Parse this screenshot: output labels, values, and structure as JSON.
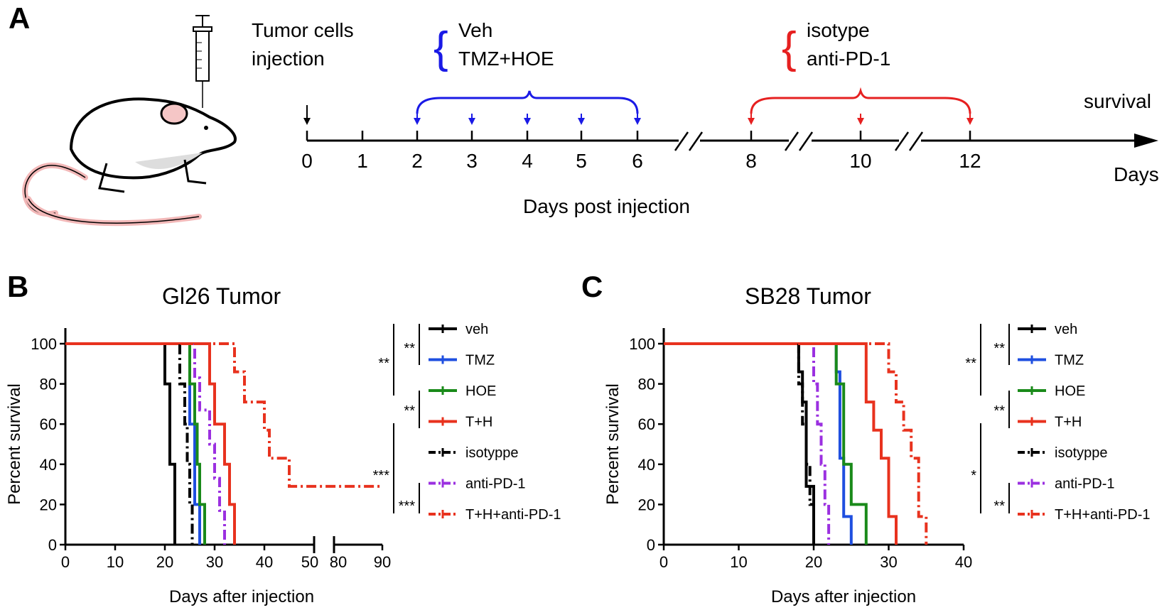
{
  "panel_a": {
    "label": "A",
    "injection_text_1": "Tumor cells",
    "injection_text_2": "injection",
    "treat1_label_1": "Veh",
    "treat1_label_2": "TMZ+HOE",
    "treat2_label_1": "isotype",
    "treat2_label_2": "anti-PD-1",
    "survival_label": "survival",
    "days_label": "Days",
    "axis_title": "Days post injection",
    "ticks": [
      "0",
      "1",
      "2",
      "3",
      "4",
      "5",
      "6",
      "8",
      "10",
      "12"
    ],
    "colors": {
      "blue": "#1a1ae6",
      "red": "#e62020"
    }
  },
  "panel_b": {
    "label": "B",
    "title": "Gl26 Tumor"
  },
  "panel_c": {
    "label": "C",
    "title": "SB28 Tumor"
  },
  "chart_data": [
    {
      "type": "line",
      "subtype": "kaplan-meier",
      "title": "Gl26 Tumor",
      "xlabel": "Days after injection",
      "ylabel": "Percent survival",
      "xlim": [
        0,
        90
      ],
      "x_break": [
        50,
        80
      ],
      "ylim": [
        0,
        100
      ],
      "x_ticks": [
        {
          "v": 0,
          "t": "0"
        },
        {
          "v": 10,
          "t": "10"
        },
        {
          "v": 20,
          "t": "20"
        },
        {
          "v": 30,
          "t": "30"
        },
        {
          "v": 40,
          "t": "40"
        },
        {
          "v": 50,
          "t": "50"
        },
        {
          "v": 80,
          "t": "80"
        },
        {
          "v": 90,
          "t": "90"
        }
      ],
      "y_ticks": [
        0,
        20,
        40,
        60,
        80,
        100
      ],
      "series": [
        {
          "name": "veh",
          "color": "#000000",
          "dash": "solid",
          "points": [
            [
              0,
              100
            ],
            [
              20,
              100
            ],
            [
              20,
              80
            ],
            [
              21,
              80
            ],
            [
              21,
              40
            ],
            [
              22,
              40
            ],
            [
              22,
              0
            ]
          ]
        },
        {
          "name": "TMZ",
          "color": "#1f4fe0",
          "dash": "solid",
          "points": [
            [
              0,
              100
            ],
            [
              25,
              100
            ],
            [
              25,
              60
            ],
            [
              26,
              60
            ],
            [
              26,
              20
            ],
            [
              27,
              20
            ],
            [
              27,
              0
            ]
          ]
        },
        {
          "name": "HOE",
          "color": "#1a8a1a",
          "dash": "solid",
          "points": [
            [
              0,
              100
            ],
            [
              25,
              100
            ],
            [
              25,
              80
            ],
            [
              26,
              80
            ],
            [
              26,
              60
            ],
            [
              26.5,
              60
            ],
            [
              26.5,
              40
            ],
            [
              27,
              40
            ],
            [
              27,
              20
            ],
            [
              28,
              20
            ],
            [
              28,
              0
            ]
          ]
        },
        {
          "name": "T+H",
          "color": "#e8321e",
          "dash": "solid",
          "points": [
            [
              0,
              100
            ],
            [
              29,
              100
            ],
            [
              29,
              80
            ],
            [
              30,
              80
            ],
            [
              30,
              60
            ],
            [
              32,
              60
            ],
            [
              32,
              40
            ],
            [
              33,
              40
            ],
            [
              33,
              20
            ],
            [
              34,
              20
            ],
            [
              34,
              0
            ]
          ]
        },
        {
          "name": "isotyppe",
          "color": "#000000",
          "dash": "dashdot",
          "points": [
            [
              0,
              100
            ],
            [
              23,
              100
            ],
            [
              23,
              80
            ],
            [
              24,
              80
            ],
            [
              24,
              60
            ],
            [
              24.5,
              60
            ],
            [
              24.5,
              40
            ],
            [
              25,
              40
            ],
            [
              25,
              20
            ],
            [
              25.5,
              20
            ],
            [
              25.5,
              0
            ]
          ]
        },
        {
          "name": "anti-PD-1",
          "color": "#9b30e0",
          "dash": "dashdot",
          "points": [
            [
              0,
              100
            ],
            [
              26,
              100
            ],
            [
              26,
              83
            ],
            [
              27,
              83
            ],
            [
              27,
              67
            ],
            [
              29,
              67
            ],
            [
              29,
              50
            ],
            [
              30,
              50
            ],
            [
              30,
              33
            ],
            [
              31,
              33
            ],
            [
              31,
              17
            ],
            [
              32,
              17
            ],
            [
              32,
              0
            ]
          ]
        },
        {
          "name": "T+H+anti-PD-1",
          "color": "#e8321e",
          "dash": "dashdot",
          "points": [
            [
              0,
              100
            ],
            [
              34,
              100
            ],
            [
              34,
              86
            ],
            [
              36,
              86
            ],
            [
              36,
              71
            ],
            [
              40,
              71
            ],
            [
              40,
              57
            ],
            [
              41,
              57
            ],
            [
              41,
              43
            ],
            [
              45,
              43
            ],
            [
              45,
              29
            ],
            [
              90,
              29
            ]
          ]
        }
      ],
      "significance": [
        "**",
        "**",
        "**",
        "***",
        "***"
      ]
    },
    {
      "type": "line",
      "subtype": "kaplan-meier",
      "title": "SB28 Tumor",
      "xlabel": "Days after injection",
      "ylabel": "Percent survival",
      "xlim": [
        0,
        40
      ],
      "ylim": [
        0,
        100
      ],
      "x_ticks": [
        {
          "v": 0,
          "t": "0"
        },
        {
          "v": 10,
          "t": "10"
        },
        {
          "v": 20,
          "t": "20"
        },
        {
          "v": 30,
          "t": "30"
        },
        {
          "v": 40,
          "t": "40"
        }
      ],
      "y_ticks": [
        0,
        20,
        40,
        60,
        80,
        100
      ],
      "series": [
        {
          "name": "veh",
          "color": "#000000",
          "dash": "solid",
          "points": [
            [
              0,
              100
            ],
            [
              18,
              100
            ],
            [
              18,
              86
            ],
            [
              18.5,
              86
            ],
            [
              18.5,
              71
            ],
            [
              19,
              71
            ],
            [
              19,
              29
            ],
            [
              20,
              29
            ],
            [
              20,
              0
            ]
          ]
        },
        {
          "name": "TMZ",
          "color": "#1f4fe0",
          "dash": "solid",
          "points": [
            [
              0,
              100
            ],
            [
              23,
              100
            ],
            [
              23,
              86
            ],
            [
              23.5,
              86
            ],
            [
              23.5,
              43
            ],
            [
              24,
              43
            ],
            [
              24,
              14
            ],
            [
              25,
              14
            ],
            [
              25,
              0
            ]
          ]
        },
        {
          "name": "HOE",
          "color": "#1a8a1a",
          "dash": "solid",
          "points": [
            [
              0,
              100
            ],
            [
              23,
              100
            ],
            [
              23,
              80
            ],
            [
              24,
              80
            ],
            [
              24,
              40
            ],
            [
              25,
              40
            ],
            [
              25,
              20
            ],
            [
              27,
              20
            ],
            [
              27,
              0
            ]
          ]
        },
        {
          "name": "T+H",
          "color": "#e8321e",
          "dash": "solid",
          "points": [
            [
              0,
              100
            ],
            [
              27,
              100
            ],
            [
              27,
              71
            ],
            [
              28,
              71
            ],
            [
              28,
              57
            ],
            [
              29,
              57
            ],
            [
              29,
              43
            ],
            [
              30,
              43
            ],
            [
              30,
              14
            ],
            [
              31,
              14
            ],
            [
              31,
              0
            ]
          ]
        },
        {
          "name": "isotyppe",
          "color": "#000000",
          "dash": "dashdot",
          "points": [
            [
              0,
              100
            ],
            [
              18,
              100
            ],
            [
              18,
              80
            ],
            [
              18.5,
              80
            ],
            [
              18.5,
              60
            ],
            [
              19,
              60
            ],
            [
              19,
              40
            ],
            [
              19.5,
              40
            ],
            [
              19.5,
              20
            ],
            [
              20,
              20
            ],
            [
              20,
              0
            ]
          ]
        },
        {
          "name": "anti-PD-1",
          "color": "#9b30e0",
          "dash": "dashdot",
          "points": [
            [
              0,
              100
            ],
            [
              20,
              100
            ],
            [
              20,
              80
            ],
            [
              20.5,
              80
            ],
            [
              20.5,
              60
            ],
            [
              21,
              60
            ],
            [
              21,
              40
            ],
            [
              21.5,
              40
            ],
            [
              21.5,
              20
            ],
            [
              22,
              20
            ],
            [
              22,
              0
            ]
          ]
        },
        {
          "name": "T+H+anti-PD-1",
          "color": "#e8321e",
          "dash": "dashdot",
          "points": [
            [
              0,
              100
            ],
            [
              30,
              100
            ],
            [
              30,
              86
            ],
            [
              31,
              86
            ],
            [
              31,
              71
            ],
            [
              32,
              71
            ],
            [
              32,
              57
            ],
            [
              33,
              57
            ],
            [
              33,
              43
            ],
            [
              34,
              43
            ],
            [
              34,
              14
            ],
            [
              35,
              14
            ],
            [
              35,
              0
            ]
          ]
        }
      ],
      "significance": [
        "**",
        "**",
        "**",
        "*",
        "**"
      ]
    }
  ]
}
